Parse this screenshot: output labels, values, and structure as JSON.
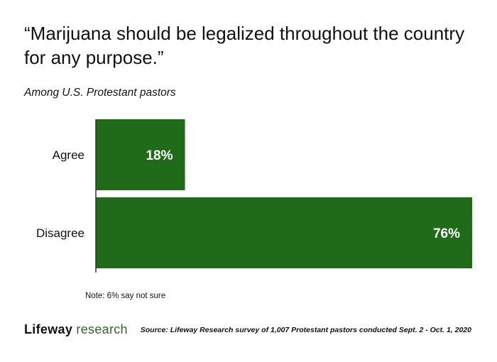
{
  "title": "“Marijuana should be legalized throughout the country for any purpose.”",
  "subtitle": "Among U.S. Protestant pastors",
  "note": "Note: 6% say not sure",
  "brand": {
    "part1": "Lifeway",
    "part2": " research"
  },
  "source": "Source: Lifeway Research survey of 1,007 Protestant pastors conducted Sept. 2 - Oct. 1, 2020",
  "colors": {
    "bar": "#1f6b1a",
    "axis": "#333333",
    "label_on_bar": "#ffffff"
  },
  "chart_data": {
    "type": "bar",
    "orientation": "horizontal",
    "categories": [
      "Agree",
      "Disagree"
    ],
    "values": [
      18,
      76
    ],
    "value_labels": [
      "18%",
      "76%"
    ],
    "xlim": [
      0,
      76
    ],
    "title": "“Marijuana should be legalized throughout the country for any purpose.”",
    "subtitle": "Among U.S. Protestant pastors",
    "xlabel": "",
    "ylabel": "",
    "grid": false,
    "legend": "none"
  }
}
